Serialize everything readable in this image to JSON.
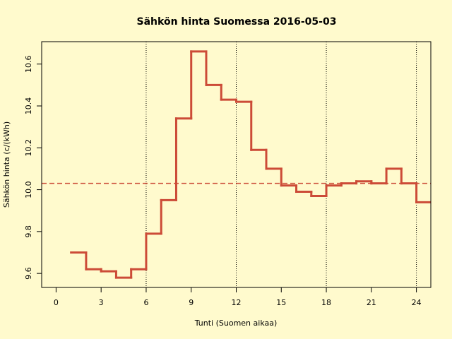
{
  "chart_data": {
    "type": "step",
    "title": "Sähkön hinta Suomessa 2016-05-03",
    "x_label": "Tunti (Suomen aikaa)",
    "y_label": "Sähkön hinta (c/(kWh)",
    "x": [
      1,
      2,
      3,
      4,
      5,
      6,
      7,
      8,
      9,
      10,
      11,
      12,
      13,
      14,
      15,
      16,
      17,
      18,
      19,
      20,
      21,
      22,
      23,
      24
    ],
    "values": [
      9.7,
      9.62,
      9.61,
      9.58,
      9.62,
      9.79,
      9.95,
      10.34,
      10.66,
      10.5,
      10.43,
      10.42,
      10.19,
      10.1,
      10.02,
      9.99,
      9.97,
      10.02,
      10.03,
      10.04,
      10.03,
      10.1,
      10.03,
      9.94
    ],
    "color": "#cc4b37",
    "mean_line": 10.03,
    "vlines": [
      6,
      12,
      18,
      24
    ],
    "xlim": [
      -0.96,
      24.96
    ],
    "ylim": [
      9.533,
      10.707
    ],
    "xticks": [
      0,
      3,
      6,
      9,
      12,
      15,
      18,
      21,
      24
    ],
    "yticks": [
      9.6,
      9.8,
      {
        "value": 10,
        "label": "10.0"
      },
      10.2,
      10.4,
      10.6
    ],
    "background": "#fffacd"
  }
}
